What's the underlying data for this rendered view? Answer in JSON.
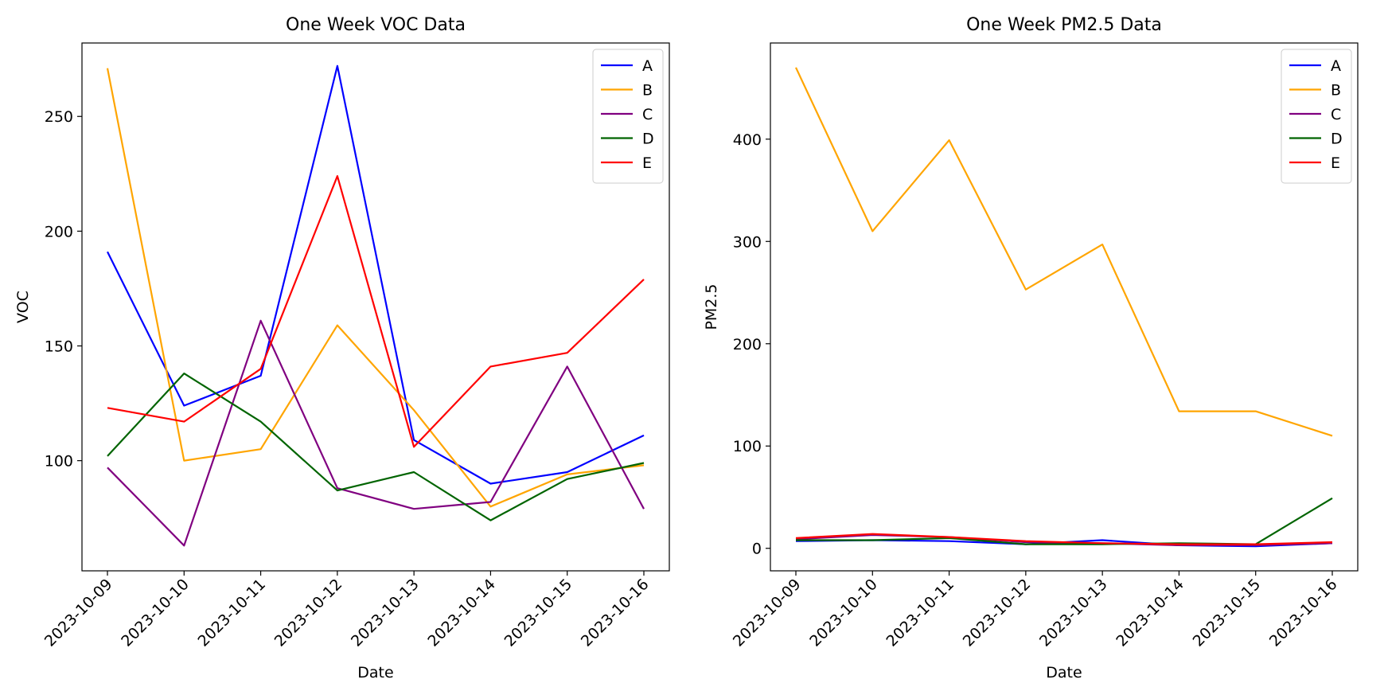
{
  "chart_data": [
    {
      "type": "line",
      "title": "One Week VOC Data",
      "xlabel": "Date",
      "ylabel": "VOC",
      "x": [
        "2023-10-09",
        "2023-10-10",
        "2023-10-11",
        "2023-10-12",
        "2023-10-13",
        "2023-10-14",
        "2023-10-15",
        "2023-10-16"
      ],
      "ylim": [
        52,
        282
      ],
      "yticks": [
        100,
        150,
        200,
        250
      ],
      "grid": false,
      "legend_position": "top-right",
      "series": [
        {
          "name": "A",
          "color": "#0000ff",
          "values": [
            191,
            124,
            137,
            272,
            109,
            90,
            95,
            111
          ]
        },
        {
          "name": "B",
          "color": "#ffa500",
          "values": [
            271,
            100,
            105,
            159,
            122,
            80,
            94,
            98
          ]
        },
        {
          "name": "C",
          "color": "#800080",
          "values": [
            97,
            63,
            161,
            88,
            79,
            82,
            141,
            79
          ]
        },
        {
          "name": "D",
          "color": "#006400",
          "values": [
            102,
            138,
            117,
            87,
            95,
            74,
            92,
            99
          ]
        },
        {
          "name": "E",
          "color": "#ff0000",
          "values": [
            123,
            117,
            140,
            224,
            106,
            141,
            147,
            179
          ]
        }
      ]
    },
    {
      "type": "line",
      "title": "One Week PM2.5 Data",
      "xlabel": "Date",
      "ylabel": "PM2.5",
      "x": [
        "2023-10-09",
        "2023-10-10",
        "2023-10-11",
        "2023-10-12",
        "2023-10-13",
        "2023-10-14",
        "2023-10-15",
        "2023-10-16"
      ],
      "ylim": [
        -22,
        494
      ],
      "yticks": [
        0,
        100,
        200,
        300,
        400
      ],
      "grid": false,
      "legend_position": "top-right",
      "series": [
        {
          "name": "A",
          "color": "#0000ff",
          "values": [
            7,
            8,
            7,
            4,
            8,
            3,
            2,
            5
          ]
        },
        {
          "name": "B",
          "color": "#ffa500",
          "values": [
            470,
            310,
            399,
            253,
            297,
            134,
            134,
            110
          ]
        },
        {
          "name": "C",
          "color": "#800080",
          "values": [
            9,
            13,
            11,
            6,
            5,
            3,
            3,
            5
          ]
        },
        {
          "name": "D",
          "color": "#006400",
          "values": [
            8,
            8,
            10,
            4,
            4,
            5,
            4,
            49
          ]
        },
        {
          "name": "E",
          "color": "#ff0000",
          "values": [
            10,
            14,
            11,
            7,
            5,
            4,
            4,
            6
          ]
        }
      ]
    }
  ]
}
